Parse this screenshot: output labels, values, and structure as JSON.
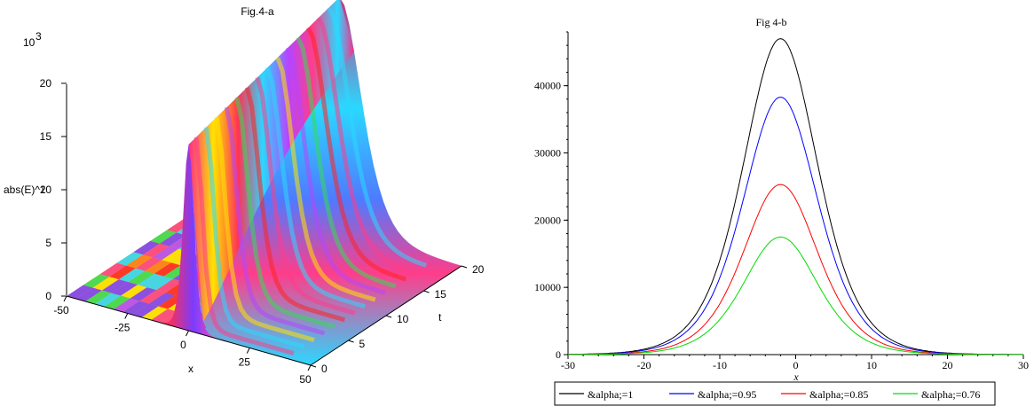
{
  "chart_data": [
    {
      "type": "surface3d",
      "title": "Fig.4-a",
      "zscale": "10",
      "zscale_exp": "3",
      "zlabel": "abs(E)^2",
      "xlabel": "x",
      "ylabel": "t",
      "xticks": [
        "-50",
        "-25",
        "0",
        "25",
        "50"
      ],
      "yticks": [
        "0",
        "5",
        "10",
        "15",
        "20"
      ],
      "zticks": [
        "0",
        "5",
        "10",
        "15",
        "20"
      ],
      "xlim": [
        -50,
        50
      ],
      "ylim": [
        0,
        20
      ],
      "zlim": [
        0,
        20
      ],
      "peak": {
        "x": 0,
        "t_start": 0,
        "t_end": 20,
        "z_at_t0": 17.5,
        "z_at_t20": 22
      }
    },
    {
      "type": "line",
      "title": "Fig 4-b",
      "xlabel": "x",
      "ylabel": "",
      "xlim": [
        -30,
        30
      ],
      "ylim": [
        0,
        48000
      ],
      "xticks": [
        -30,
        -20,
        -10,
        0,
        10,
        20,
        30
      ],
      "yticks": [
        0,
        10000,
        20000,
        30000,
        40000
      ],
      "legend_position": "bottom",
      "series": [
        {
          "name": "&alpha;=1",
          "color": "#000000",
          "peak": 47000,
          "center": -2,
          "width": 6.6
        },
        {
          "name": "&alpha;=0.95",
          "color": "#0000ff",
          "peak": 38300,
          "center": -2,
          "width": 6.6
        },
        {
          "name": "&alpha;=0.85",
          "color": "#ff0000",
          "peak": 25300,
          "center": -2,
          "width": 6.6
        },
        {
          "name": "&alpha;=0.76",
          "color": "#00dd00",
          "peak": 17500,
          "center": -2,
          "width": 6.6
        }
      ]
    }
  ]
}
